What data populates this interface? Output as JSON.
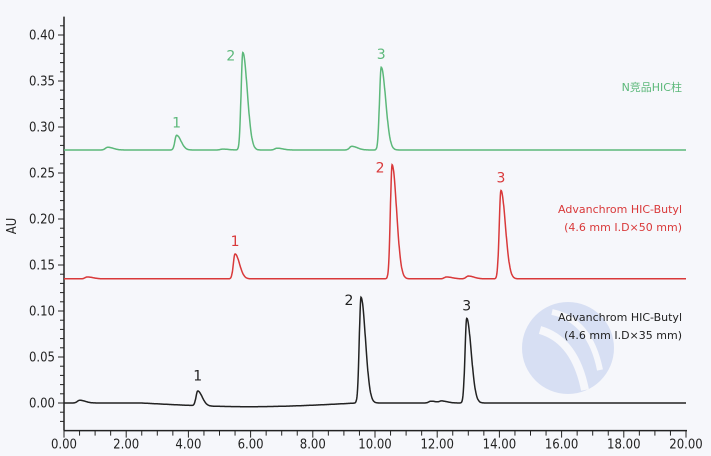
{
  "chart_data": {
    "type": "line",
    "xlabel": "",
    "ylabel": "AU",
    "xlim": [
      0,
      20
    ],
    "ylim": [
      -0.03,
      0.42
    ],
    "x_ticks": [
      "0.00",
      "2.00",
      "4.00",
      "6.00",
      "8.00",
      "10.00",
      "12.00",
      "14.00",
      "16.00",
      "18.00",
      "20.00"
    ],
    "y_ticks": [
      "0.00",
      "0.05",
      "0.10",
      "0.15",
      "0.20",
      "0.25",
      "0.30",
      "0.35",
      "0.40"
    ],
    "grid": false,
    "legend_placement": "right, beside each trace",
    "series": [
      {
        "name": "N竞品HIC柱",
        "name_lines": [
          "N竞品HIC柱"
        ],
        "color": "#5cb87a",
        "baseline": 0.275,
        "peaks": [
          {
            "label": "1",
            "x": 3.62,
            "y": 0.291
          },
          {
            "label": "2",
            "x": 5.75,
            "y": 0.381
          },
          {
            "label": "3",
            "x": 10.2,
            "y": 0.365
          }
        ],
        "minor_features": [
          [
            1.4,
            0.278
          ],
          [
            5.1,
            0.276
          ],
          [
            6.85,
            0.277
          ],
          [
            9.25,
            0.279
          ]
        ]
      },
      {
        "name": "Advanchrom HIC-Butyl (4.6 mm I.D×50 mm)",
        "name_lines": [
          "Advanchrom  HIC-Butyl",
          "(4.6 mm I.D×50 mm)"
        ],
        "color": "#d9393a",
        "baseline": 0.135,
        "peaks": [
          {
            "label": "1",
            "x": 5.5,
            "y": 0.162
          },
          {
            "label": "2",
            "x": 10.55,
            "y": 0.259
          },
          {
            "label": "3",
            "x": 14.05,
            "y": 0.231
          }
        ],
        "minor_features": [
          [
            0.75,
            0.137
          ],
          [
            12.3,
            0.137
          ],
          [
            13.0,
            0.138
          ]
        ]
      },
      {
        "name": "Advanchrom HIC-Butyl (4.6 mm I.D×35 mm)",
        "name_lines": [
          "Advanchrom  HIC-Butyl",
          "(4.6 mm I.D×35 mm)"
        ],
        "color": "#222222",
        "baseline": 0.0,
        "peaks": [
          {
            "label": "1",
            "x": 4.3,
            "y": 0.016
          },
          {
            "label": "2",
            "x": 9.55,
            "y": 0.115
          },
          {
            "label": "3",
            "x": 12.95,
            "y": 0.092
          }
        ],
        "minor_features": [
          [
            0.5,
            0.003
          ],
          [
            10.95,
            0.0
          ],
          [
            11.8,
            0.002
          ],
          [
            12.15,
            0.002
          ]
        ]
      }
    ]
  }
}
